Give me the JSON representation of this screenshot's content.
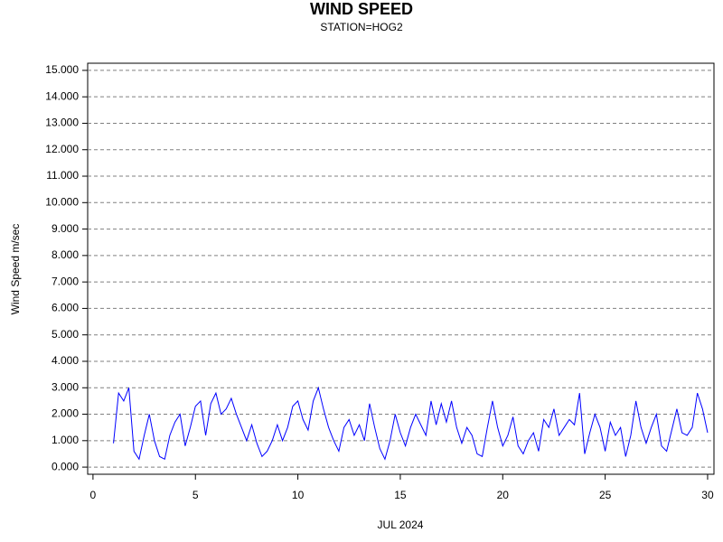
{
  "chart_data": {
    "type": "line",
    "title": "WIND SPEED",
    "subtitle": "STATION=HOG2",
    "x_label": "JUL 2024",
    "y_label": "Wind Speed m/sec",
    "xlim": [
      -0.26,
      30.31
    ],
    "ylim": [
      -0.27,
      15.27
    ],
    "xticks": [
      0,
      5,
      10,
      15,
      20,
      25,
      30
    ],
    "yticks": [
      {
        "value": 0,
        "label": "0.000"
      },
      {
        "value": 1,
        "label": "1.000"
      },
      {
        "value": 2,
        "label": "2.000"
      },
      {
        "value": 3,
        "label": "3.000"
      },
      {
        "value": 4,
        "label": "4.000"
      },
      {
        "value": 5,
        "label": "5.000"
      },
      {
        "value": 6,
        "label": "6.000"
      },
      {
        "value": 7,
        "label": "7.000"
      },
      {
        "value": 8,
        "label": "8.000"
      },
      {
        "value": 9,
        "label": "9.000"
      },
      {
        "value": 10,
        "label": "10.000"
      },
      {
        "value": 11,
        "label": "11.000"
      },
      {
        "value": 12,
        "label": "12.000"
      },
      {
        "value": 13,
        "label": "13.000"
      },
      {
        "value": 14,
        "label": "14.000"
      },
      {
        "value": 15,
        "label": "15.000"
      }
    ],
    "grid": true,
    "x": [
      1,
      1.25,
      1.5,
      1.75,
      2,
      2.25,
      2.5,
      2.75,
      3,
      3.25,
      3.5,
      3.75,
      4,
      4.25,
      4.5,
      4.75,
      5,
      5.25,
      5.5,
      5.75,
      6,
      6.25,
      6.5,
      6.75,
      7,
      7.25,
      7.5,
      7.75,
      8,
      8.25,
      8.5,
      8.75,
      9,
      9.25,
      9.5,
      9.75,
      10,
      10.25,
      10.5,
      10.75,
      11,
      11.25,
      11.5,
      11.75,
      12,
      12.25,
      12.5,
      12.75,
      13,
      13.25,
      13.5,
      13.75,
      14,
      14.25,
      14.5,
      14.75,
      15,
      15.25,
      15.5,
      15.75,
      16,
      16.25,
      16.5,
      16.75,
      17,
      17.25,
      17.5,
      17.75,
      18,
      18.25,
      18.5,
      18.75,
      19,
      19.25,
      19.5,
      19.75,
      20,
      20.25,
      20.5,
      20.75,
      21,
      21.25,
      21.5,
      21.75,
      22,
      22.25,
      22.5,
      22.75,
      23,
      23.25,
      23.5,
      23.75,
      24,
      24.25,
      24.5,
      24.75,
      25,
      25.25,
      25.5,
      25.75,
      26,
      26.25,
      26.5,
      26.75,
      27,
      27.25,
      27.5,
      27.75,
      28,
      28.25,
      28.5,
      28.75,
      29,
      29.25,
      29.5,
      29.75,
      30
    ],
    "series": [
      {
        "color": "#0000ff",
        "values": [
          0.9,
          2.8,
          2.5,
          3.0,
          0.6,
          0.3,
          1.2,
          2.0,
          1.0,
          0.4,
          0.3,
          1.2,
          1.7,
          2.0,
          0.8,
          1.5,
          2.3,
          2.5,
          1.2,
          2.4,
          2.8,
          2.0,
          2.2,
          2.6,
          2.0,
          1.5,
          1.0,
          1.6,
          0.9,
          0.4,
          0.6,
          1.0,
          1.6,
          1.0,
          1.5,
          2.3,
          2.5,
          1.8,
          1.4,
          2.5,
          3.0,
          2.2,
          1.5,
          1.0,
          0.6,
          1.5,
          1.8,
          1.2,
          1.6,
          1.0,
          2.4,
          1.5,
          0.7,
          0.3,
          1.0,
          2.0,
          1.3,
          0.8,
          1.5,
          2.0,
          1.6,
          1.2,
          2.5,
          1.6,
          2.4,
          1.7,
          2.5,
          1.5,
          0.9,
          1.5,
          1.2,
          0.5,
          0.4,
          1.5,
          2.5,
          1.5,
          0.8,
          1.2,
          1.9,
          0.8,
          0.5,
          1.0,
          1.3,
          0.6,
          1.8,
          1.5,
          2.2,
          1.2,
          1.5,
          1.8,
          1.6,
          2.8,
          0.5,
          1.3,
          2.0,
          1.5,
          0.6,
          1.7,
          1.2,
          1.5,
          0.4,
          1.2,
          2.5,
          1.5,
          0.9,
          1.5,
          2.0,
          0.8,
          0.6,
          1.4,
          2.2,
          1.3,
          1.2,
          1.5,
          2.8,
          2.2,
          1.3
        ]
      }
    ]
  }
}
